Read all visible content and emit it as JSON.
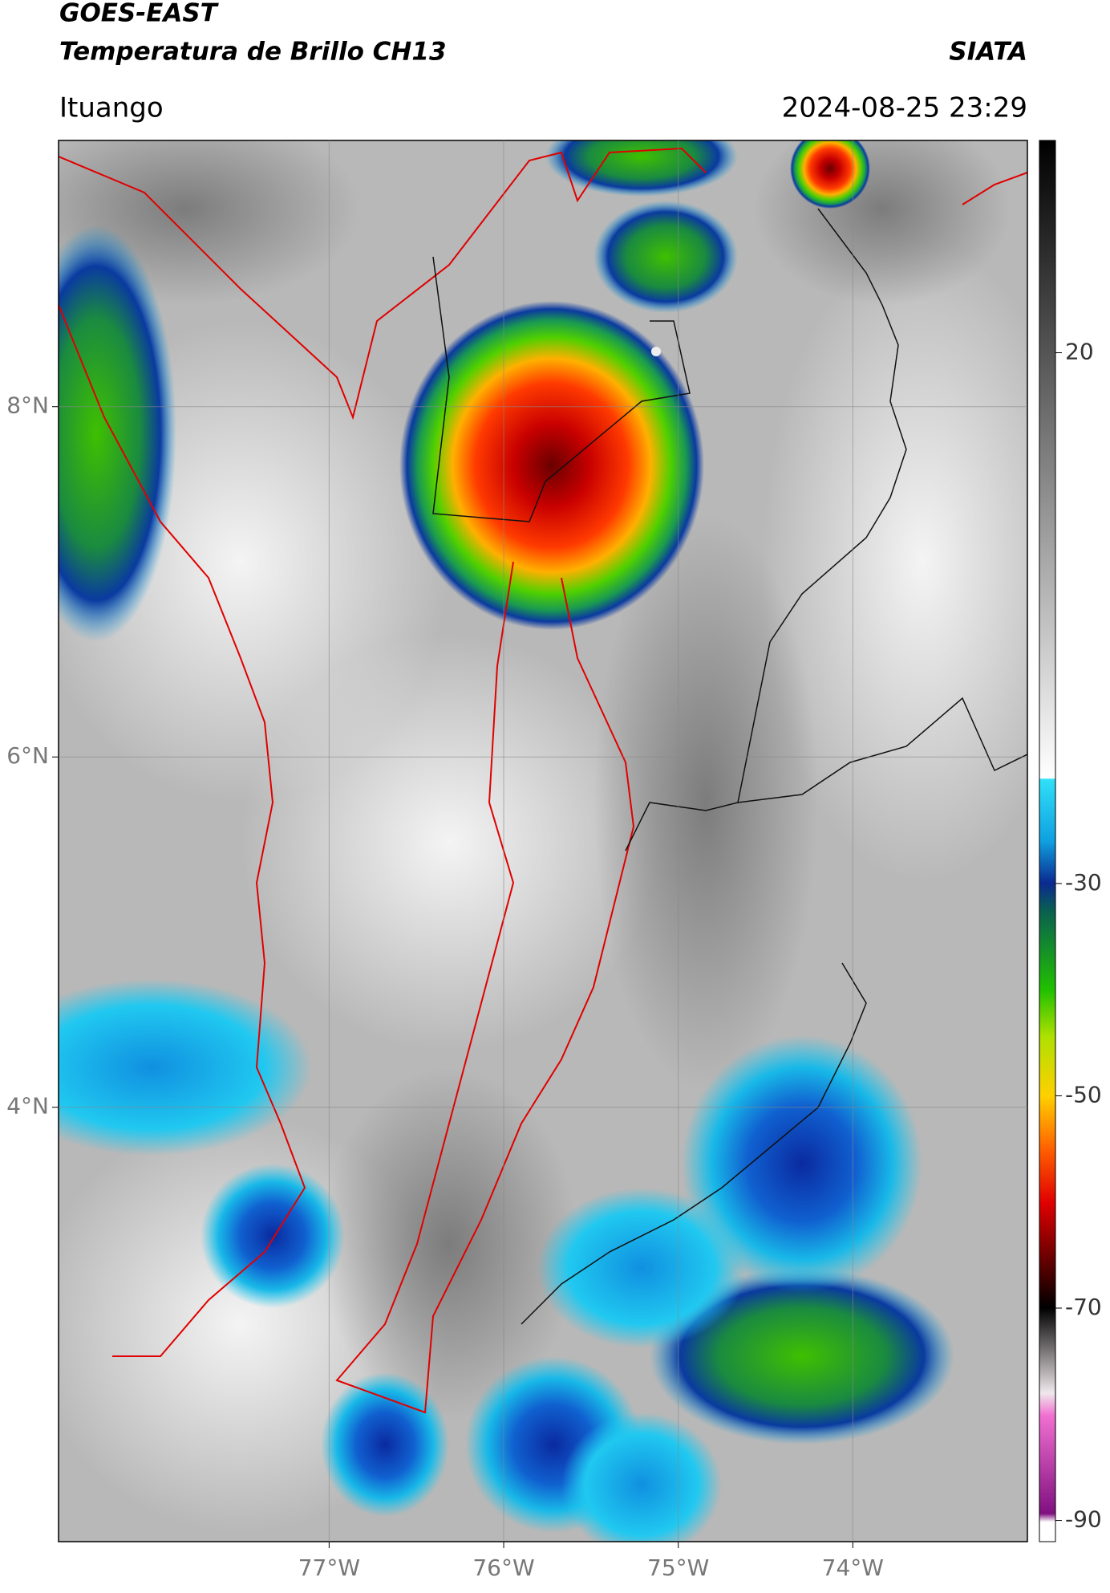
{
  "header": {
    "title": "GOES-EAST",
    "subtitle": "Temperatura de Brillo CH13",
    "source": "SIATA",
    "location": "Ituango",
    "timestamp": "2024-08-25 23:29"
  },
  "map": {
    "xlim": [
      -78.55,
      -73.0
    ],
    "ylim": [
      1.52,
      9.52
    ],
    "xticks": [
      {
        "value": -77,
        "label": "77°W"
      },
      {
        "value": -76,
        "label": "76°W"
      },
      {
        "value": -75,
        "label": "75°W"
      },
      {
        "value": -74,
        "label": "74°W"
      }
    ],
    "yticks": [
      {
        "value": 8,
        "label": "8°N"
      },
      {
        "value": 6,
        "label": "6°N"
      },
      {
        "value": 4,
        "label": "4°N"
      }
    ],
    "grid": true
  },
  "colorbar": {
    "lim": [
      -92,
      40
    ],
    "ticks": [
      20,
      -30,
      -50,
      -70,
      -90
    ]
  }
}
